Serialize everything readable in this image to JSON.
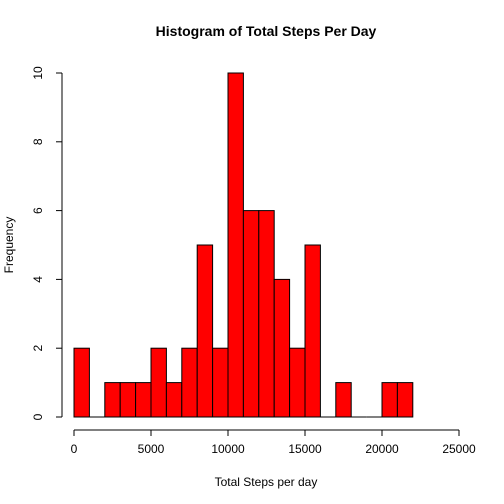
{
  "chart_data": {
    "type": "bar",
    "title": "Histogram of Total Steps Per Day",
    "xlabel": "Total Steps per day",
    "ylabel": "Frequency",
    "bar_color": "#ff0000",
    "xlim": [
      0,
      25000
    ],
    "ylim": [
      0,
      10
    ],
    "x_ticks": [
      0,
      5000,
      10000,
      15000,
      20000,
      25000
    ],
    "y_ticks": [
      0,
      2,
      4,
      6,
      8,
      10
    ],
    "bins": [
      {
        "start": 0,
        "end": 1000,
        "value": 2
      },
      {
        "start": 1000,
        "end": 2000,
        "value": 0
      },
      {
        "start": 2000,
        "end": 3000,
        "value": 1
      },
      {
        "start": 3000,
        "end": 4000,
        "value": 1
      },
      {
        "start": 4000,
        "end": 5000,
        "value": 1
      },
      {
        "start": 5000,
        "end": 6000,
        "value": 2
      },
      {
        "start": 6000,
        "end": 7000,
        "value": 1
      },
      {
        "start": 7000,
        "end": 8000,
        "value": 2
      },
      {
        "start": 8000,
        "end": 9000,
        "value": 5
      },
      {
        "start": 9000,
        "end": 10000,
        "value": 2
      },
      {
        "start": 10000,
        "end": 11000,
        "value": 10
      },
      {
        "start": 11000,
        "end": 12000,
        "value": 6
      },
      {
        "start": 12000,
        "end": 13000,
        "value": 6
      },
      {
        "start": 13000,
        "end": 14000,
        "value": 4
      },
      {
        "start": 14000,
        "end": 15000,
        "value": 2
      },
      {
        "start": 15000,
        "end": 16000,
        "value": 5
      },
      {
        "start": 16000,
        "end": 17000,
        "value": 0
      },
      {
        "start": 17000,
        "end": 18000,
        "value": 1
      },
      {
        "start": 18000,
        "end": 19000,
        "value": 0
      },
      {
        "start": 19000,
        "end": 20000,
        "value": 0
      },
      {
        "start": 20000,
        "end": 21000,
        "value": 1
      },
      {
        "start": 21000,
        "end": 22000,
        "value": 1
      }
    ]
  }
}
